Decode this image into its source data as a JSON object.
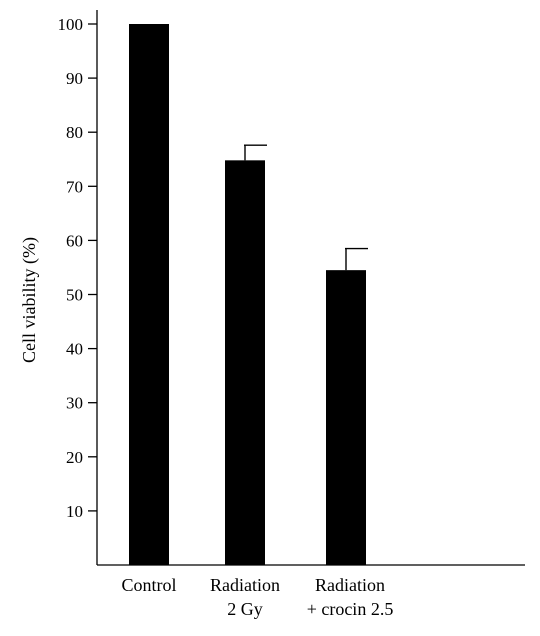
{
  "chart_data": {
    "type": "bar",
    "ylabel": "Cell viability (%)",
    "xlabel": "",
    "title": "",
    "ylim": [
      0,
      105
    ],
    "yticks": [
      10,
      20,
      30,
      40,
      50,
      60,
      70,
      80,
      90,
      100
    ],
    "categories": [
      {
        "line1": "Control",
        "line2": ""
      },
      {
        "line1": "Radiation",
        "line2": "2 Gy"
      },
      {
        "line1": "Radiation",
        "line2": "+ crocin 2.5"
      }
    ],
    "values": [
      100,
      74.8,
      54.5
    ],
    "errors": [
      0,
      2.8,
      4.0
    ],
    "bar_color": "#000000",
    "grid": false,
    "legend": "none"
  }
}
